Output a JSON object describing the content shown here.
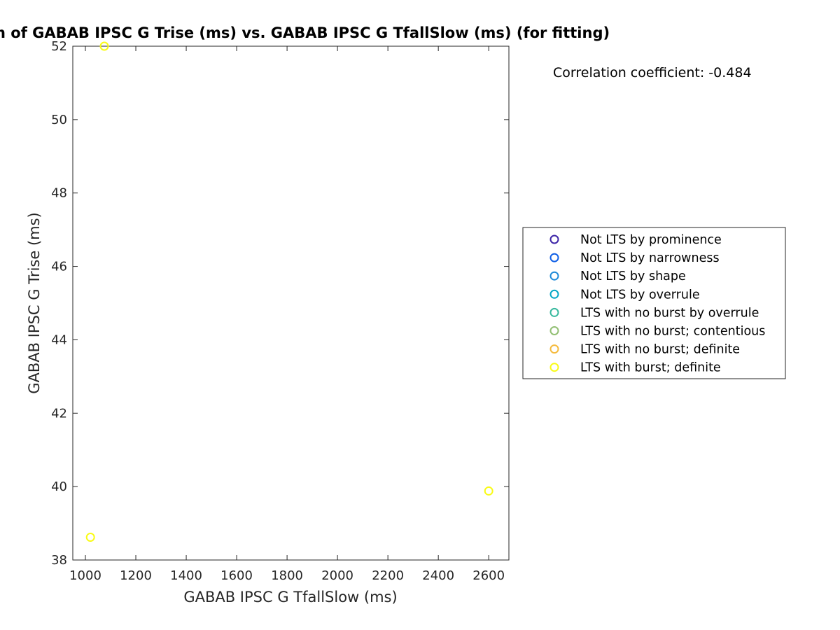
{
  "chart_data": {
    "type": "scatter",
    "title": "n of GABAB IPSC G Trise (ms) vs. GABAB IPSC G TfallSlow (ms) (for fitting)",
    "xlabel": "GABAB IPSC G TfallSlow (ms)",
    "ylabel": "GABAB IPSC G Trise (ms)",
    "xlim": [
      950,
      2680
    ],
    "ylim": [
      38,
      52
    ],
    "xticks": [
      1000,
      1200,
      1400,
      1600,
      1800,
      2000,
      2200,
      2400,
      2600
    ],
    "yticks": [
      38,
      40,
      42,
      44,
      46,
      48,
      50,
      52
    ],
    "grid": false,
    "annotation": "Correlation coefficient: -0.484",
    "legend_position": "right",
    "series": [
      {
        "name": "Not LTS by prominence",
        "color": "#3e26a8",
        "points": []
      },
      {
        "name": "Not LTS by narrowness",
        "color": "#0f5fe6",
        "points": []
      },
      {
        "name": "Not LTS by shape",
        "color": "#1e8ad8",
        "points": []
      },
      {
        "name": "Not LTS by overrule",
        "color": "#06a7c6",
        "points": []
      },
      {
        "name": "LTS with no burst by overrule",
        "color": "#38b99e",
        "points": []
      },
      {
        "name": "LTS with no burst; contentious",
        "color": "#92bf73",
        "points": []
      },
      {
        "name": "LTS with no burst; definite",
        "color": "#f5ba3c",
        "points": []
      },
      {
        "name": "LTS with burst; definite",
        "color": "#f9fb15",
        "points": [
          {
            "x": 1075,
            "y": 52.0
          },
          {
            "x": 1020,
            "y": 38.62
          },
          {
            "x": 2600,
            "y": 39.88
          }
        ]
      }
    ]
  }
}
